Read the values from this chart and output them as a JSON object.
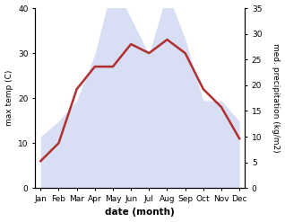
{
  "months": [
    "Jan",
    "Feb",
    "Mar",
    "Apr",
    "May",
    "Jun",
    "Jul",
    "Aug",
    "Sep",
    "Oct",
    "Nov",
    "Dec"
  ],
  "temperature": [
    6,
    10,
    22,
    27,
    27,
    32,
    30,
    33,
    30,
    22,
    18,
    11
  ],
  "precipitation": [
    10,
    13,
    17,
    26,
    40,
    33,
    26,
    38,
    29,
    17,
    17,
    13
  ],
  "temp_color": "#b03030",
  "precip_fill_color": "#c8d0f0",
  "precip_edge_color": "#9090c0",
  "temp_ylim": [
    0,
    40
  ],
  "precip_ylim": [
    0,
    35
  ],
  "temp_yticks": [
    0,
    10,
    20,
    30,
    40
  ],
  "precip_yticks": [
    0,
    5,
    10,
    15,
    20,
    25,
    30,
    35
  ],
  "ylabel_left": "max temp (C)",
  "ylabel_right": "med. precipitation (kg/m2)",
  "xlabel": "date (month)",
  "temp_linewidth": 1.8,
  "precip_alpha": 0.7
}
